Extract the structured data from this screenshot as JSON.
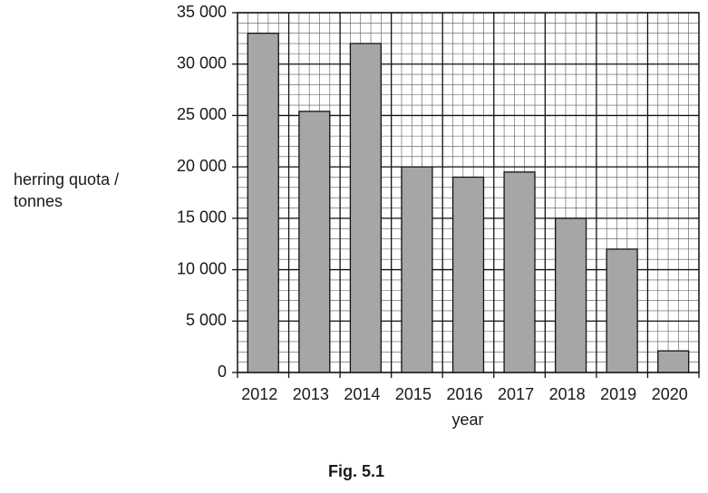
{
  "chart_data": {
    "type": "bar",
    "y_label": [
      "herring quota /",
      "tonnes"
    ],
    "x_label": "year",
    "caption": "Fig. 5.1",
    "categories": [
      "2012",
      "2013",
      "2014",
      "2015",
      "2016",
      "2017",
      "2018",
      "2019",
      "2020"
    ],
    "values": [
      33000,
      25400,
      32000,
      20000,
      19000,
      19500,
      15000,
      12000,
      2100
    ],
    "color": "#a6a6a6",
    "ylim": [
      0,
      35000
    ],
    "yticks": [
      0,
      {
        "value": 5000,
        "label": "5 000"
      },
      {
        "value": 10000,
        "label": "10 000"
      },
      {
        "value": 15000,
        "label": "15 000"
      },
      {
        "value": 20000,
        "label": "20 000"
      },
      {
        "value": 25000,
        "label": "25 000"
      },
      {
        "value": 30000,
        "label": "30 000"
      },
      {
        "value": 35000,
        "label": "35 000"
      }
    ],
    "grid": true
  }
}
